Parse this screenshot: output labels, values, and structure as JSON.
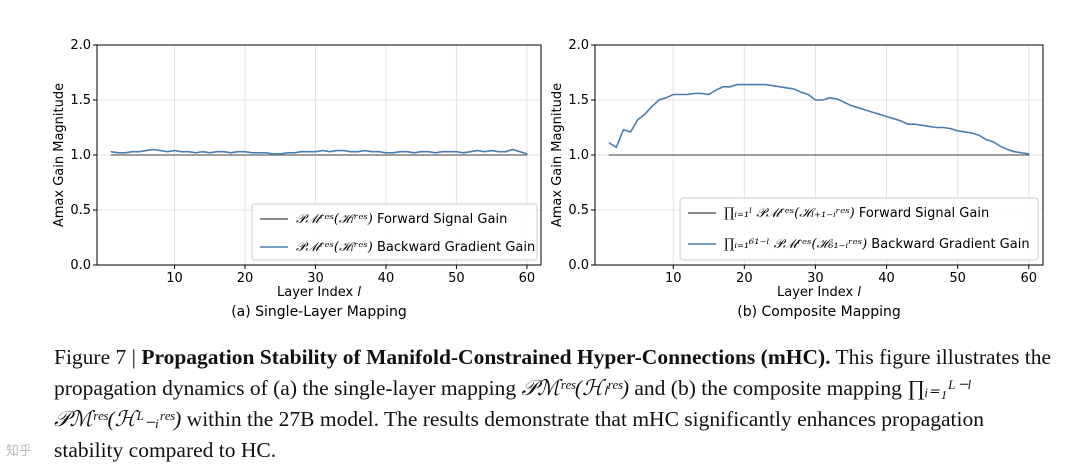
{
  "chart_data": [
    {
      "type": "line",
      "subtitle": "(a) Single-Layer Mapping",
      "xlabel": "Layer Index",
      "xlabel_var": "l",
      "ylabel": "Amax Gain Magnitude",
      "xlim": [
        -1,
        62
      ],
      "ylim": [
        0.0,
        2.0
      ],
      "xticks": [
        10,
        20,
        30,
        40,
        50,
        60
      ],
      "yticks": [
        "0.0",
        "0.5",
        "1.0",
        "1.5",
        "2.0"
      ],
      "grid": true,
      "legend_position": "lower-right",
      "series": [
        {
          "name": "P_M^res(H_l^res) Forward Signal Gain",
          "legend_math": "𝒫ℳʳᵉˢ(ℋₗʳᵉˢ)",
          "legend_text": "Forward Signal Gain",
          "color": "#666666",
          "x": [
            1,
            60
          ],
          "values": [
            1.0,
            1.0
          ]
        },
        {
          "name": "P_M^res(H_l^res) Backward Gradient Gain",
          "legend_math": "𝒫ℳʳᵉˢ(ℋₗʳᵉˢ)",
          "legend_text": "Backward Gradient Gain",
          "color": "#4a7eb0",
          "x": [
            1,
            2,
            3,
            4,
            5,
            6,
            7,
            8,
            9,
            10,
            11,
            12,
            13,
            14,
            15,
            16,
            17,
            18,
            19,
            20,
            21,
            22,
            23,
            24,
            25,
            26,
            27,
            28,
            29,
            30,
            31,
            32,
            33,
            34,
            35,
            36,
            37,
            38,
            39,
            40,
            41,
            42,
            43,
            44,
            45,
            46,
            47,
            48,
            49,
            50,
            51,
            52,
            53,
            54,
            55,
            56,
            57,
            58,
            59,
            60
          ],
          "values": [
            1.03,
            1.02,
            1.02,
            1.03,
            1.03,
            1.04,
            1.05,
            1.04,
            1.03,
            1.04,
            1.03,
            1.03,
            1.02,
            1.03,
            1.02,
            1.03,
            1.03,
            1.02,
            1.03,
            1.03,
            1.02,
            1.02,
            1.02,
            1.01,
            1.01,
            1.02,
            1.02,
            1.03,
            1.03,
            1.03,
            1.04,
            1.03,
            1.04,
            1.04,
            1.03,
            1.03,
            1.04,
            1.03,
            1.03,
            1.02,
            1.02,
            1.03,
            1.03,
            1.02,
            1.03,
            1.03,
            1.02,
            1.03,
            1.03,
            1.03,
            1.02,
            1.03,
            1.04,
            1.03,
            1.04,
            1.03,
            1.03,
            1.05,
            1.03,
            1.01
          ]
        }
      ]
    },
    {
      "type": "line",
      "subtitle": "(b) Composite Mapping",
      "xlabel": "Layer Index",
      "xlabel_var": "l",
      "ylabel": "Amax Gain Magnitude",
      "xlim": [
        -1,
        62
      ],
      "ylim": [
        0.0,
        2.0
      ],
      "xticks": [
        10,
        20,
        30,
        40,
        50,
        60
      ],
      "yticks": [
        "0.0",
        "0.5",
        "1.0",
        "1.5",
        "2.0"
      ],
      "grid": true,
      "legend_position": "lower-right",
      "series": [
        {
          "name": "∏_{i=1}^{l} P_M^res(H_{l+1-i}^res) Forward Signal Gain",
          "legend_math": "∏ᵢ₌₁ˡ 𝒫ℳʳᵉˢ(ℋₗ₊₁₋ᵢʳᵉˢ)",
          "legend_text": "Forward Signal Gain",
          "color": "#666666",
          "x": [
            1,
            60
          ],
          "values": [
            1.0,
            1.0
          ]
        },
        {
          "name": "∏_{i=1}^{61-l} P_M^res(H_{61-i}^res) Backward Gradient Gain",
          "legend_math": "∏ᵢ₌₁⁶¹⁻ˡ 𝒫ℳʳᵉˢ(ℋ₆₁₋ᵢʳᵉˢ)",
          "legend_text": "Backward Gradient Gain",
          "color": "#4a7eb0",
          "x": [
            1,
            2,
            3,
            4,
            5,
            6,
            7,
            8,
            9,
            10,
            11,
            12,
            13,
            14,
            15,
            16,
            17,
            18,
            19,
            20,
            21,
            22,
            23,
            24,
            25,
            26,
            27,
            28,
            29,
            30,
            31,
            32,
            33,
            34,
            35,
            36,
            37,
            38,
            39,
            40,
            41,
            42,
            43,
            44,
            45,
            46,
            47,
            48,
            49,
            50,
            51,
            52,
            53,
            54,
            55,
            56,
            57,
            58,
            59,
            60
          ],
          "values": [
            1.11,
            1.07,
            1.23,
            1.21,
            1.32,
            1.37,
            1.44,
            1.5,
            1.52,
            1.55,
            1.55,
            1.55,
            1.56,
            1.56,
            1.55,
            1.59,
            1.62,
            1.62,
            1.64,
            1.64,
            1.64,
            1.64,
            1.64,
            1.63,
            1.62,
            1.61,
            1.6,
            1.57,
            1.55,
            1.5,
            1.5,
            1.52,
            1.51,
            1.48,
            1.45,
            1.43,
            1.41,
            1.39,
            1.37,
            1.35,
            1.33,
            1.31,
            1.28,
            1.28,
            1.27,
            1.26,
            1.25,
            1.25,
            1.24,
            1.22,
            1.21,
            1.2,
            1.18,
            1.14,
            1.12,
            1.08,
            1.05,
            1.03,
            1.02,
            1.01
          ]
        }
      ]
    }
  ],
  "caption": {
    "figure_label": "Figure 7 | ",
    "title": "Propagation Stability of Manifold-Constrained Hyper-Connections (mHC).",
    "text_1": " This figure illustrates the propagation dynamics of (a) the single-layer mapping ",
    "math_1": "𝒫ℳʳᵉˢ(ℋₗʳᵉˢ)",
    "text_2": " and (b) the composite mapping ",
    "math_2": "∏ᵢ₌₁ᴸ⁻ˡ 𝒫ℳʳᵉˢ(ℋᴸ₋ᵢʳᵉˢ)",
    "text_3": " within the 27B model. The results demonstrate that mHC significantly enhances propagation stability compared to HC."
  },
  "watermark": "知乎"
}
